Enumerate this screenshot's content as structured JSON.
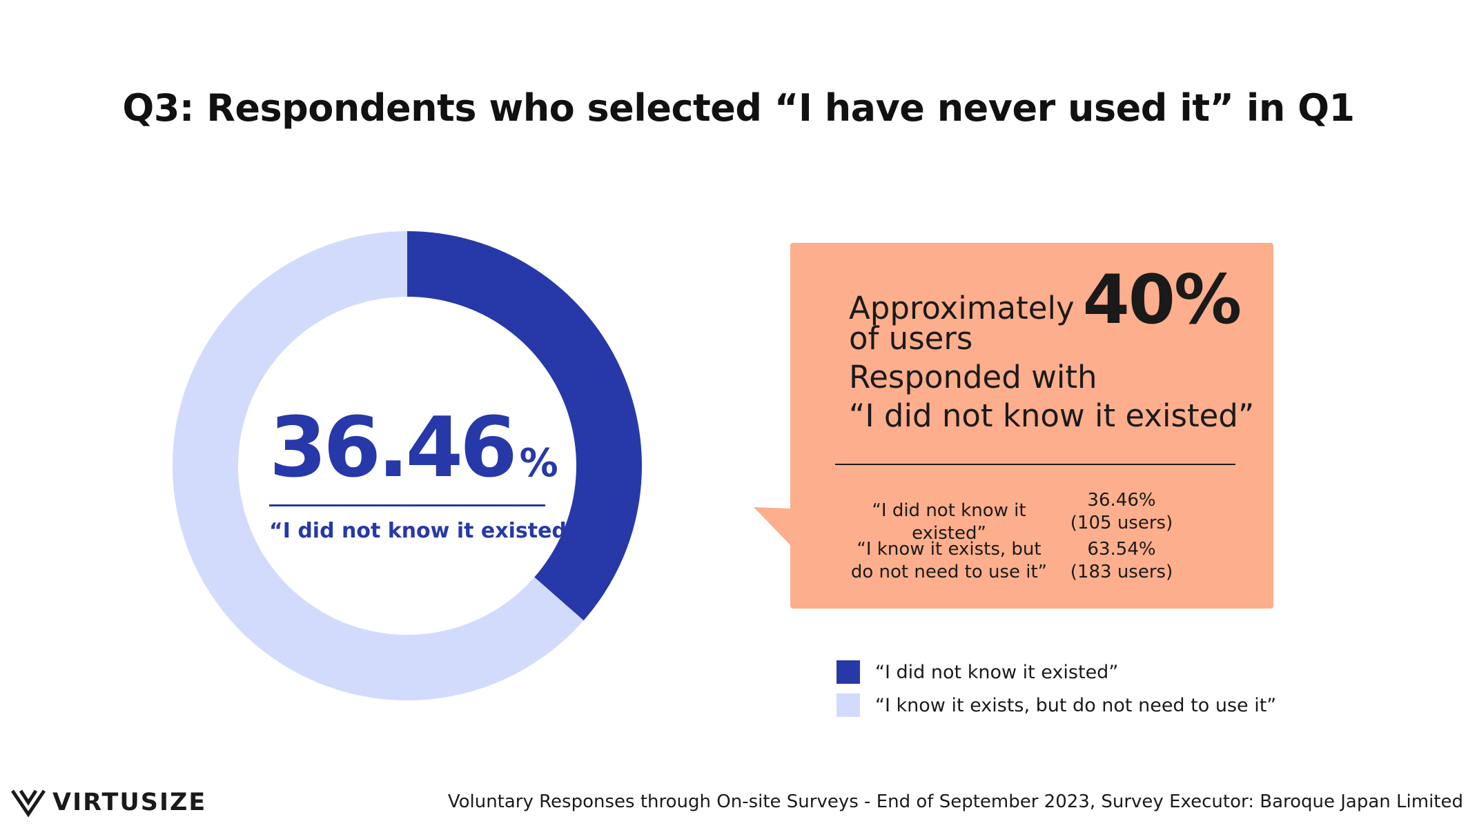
{
  "title": "Q3:  Respondents who selected “I have never used it” in Q1",
  "chart_data": {
    "type": "pie",
    "variant": "donut",
    "title": "Q3:  Respondents who selected “I have never used it” in Q1",
    "slices": [
      {
        "label": "“I did not know it existed”",
        "value": 36.46,
        "users": 105,
        "color": "#2739A8"
      },
      {
        "label": "“I know it exists, but do not need to use it”",
        "value": 63.54,
        "users": 183,
        "color": "#D3DBFD"
      }
    ],
    "center_value": "36.46",
    "center_unit": "%",
    "center_label": "“I did not know it existed”"
  },
  "callout": {
    "line1": "Approximately",
    "highlight": "40%",
    "line2": "of users",
    "line3": "Responded with",
    "line4": "“I did not know it existed”",
    "stats": [
      {
        "label_lines": [
          "“I did not know it existed”"
        ],
        "value_lines": [
          "36.46%",
          "(105 users)"
        ]
      },
      {
        "label_lines": [
          "“I know it exists, but",
          "do not need to use it”"
        ],
        "value_lines": [
          "63.54%",
          "(183 users)"
        ]
      }
    ]
  },
  "legend": [
    {
      "label": "“I did not know it existed”",
      "color": "#2739A8"
    },
    {
      "label": "“I know it exists, but do not need to use it”",
      "color": "#D3DBFD"
    }
  ],
  "footer": {
    "brand": "VIRTUSIZE",
    "source": "Voluntary Responses through On-site Surveys - End of September 2023, Survey Executor: Baroque Japan Limited"
  }
}
